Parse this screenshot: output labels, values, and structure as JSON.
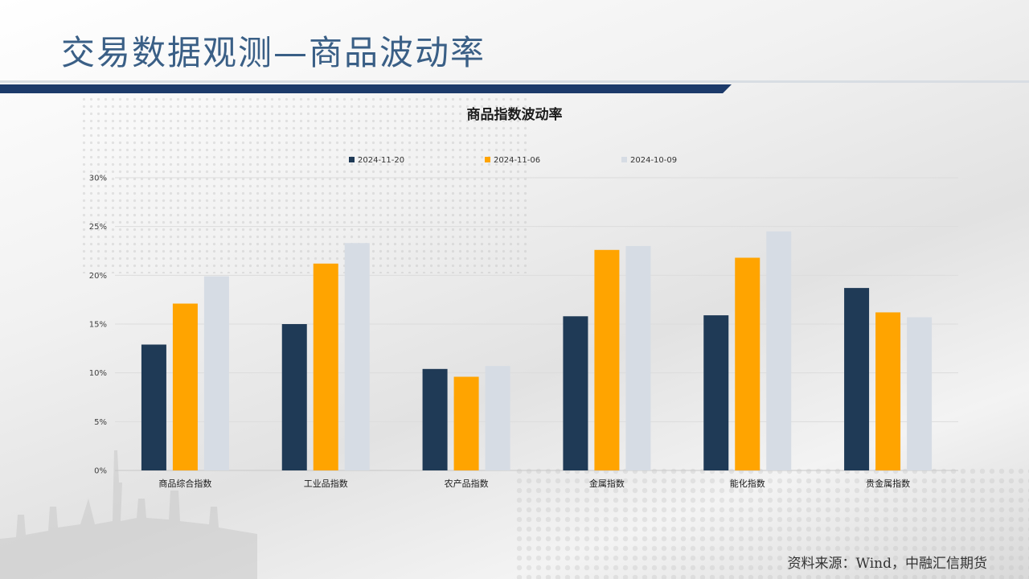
{
  "slide": {
    "title": "交易数据观测—商品波动率",
    "source": "资料来源：Wind，中融汇信期货"
  },
  "colors": {
    "title": "#3a5f86",
    "band": "#1c3a6a",
    "series": [
      "#1f3a56",
      "#ffa400",
      "#d6dce4"
    ]
  },
  "chart_data": {
    "type": "bar",
    "title": "商品指数波动率",
    "categories": [
      "商品综合指数",
      "工业品指数",
      "农产品指数",
      "金属指数",
      "能化指数",
      "贵金属指数"
    ],
    "series": [
      {
        "name": "2024-11-20",
        "values": [
          12.9,
          15.0,
          10.4,
          15.8,
          15.9,
          18.7
        ]
      },
      {
        "name": "2024-11-06",
        "values": [
          17.1,
          21.2,
          9.6,
          22.6,
          21.8,
          16.2
        ]
      },
      {
        "name": "2024-10-09",
        "values": [
          19.9,
          23.3,
          10.7,
          23.0,
          24.5,
          15.7
        ]
      }
    ],
    "ylim": [
      0,
      30
    ],
    "yticks": [
      "0%",
      "5%",
      "10%",
      "15%",
      "20%",
      "25%",
      "30%"
    ],
    "ytick_values": [
      0,
      5,
      10,
      15,
      20,
      25,
      30
    ],
    "grid": true,
    "legend_position": "top"
  }
}
